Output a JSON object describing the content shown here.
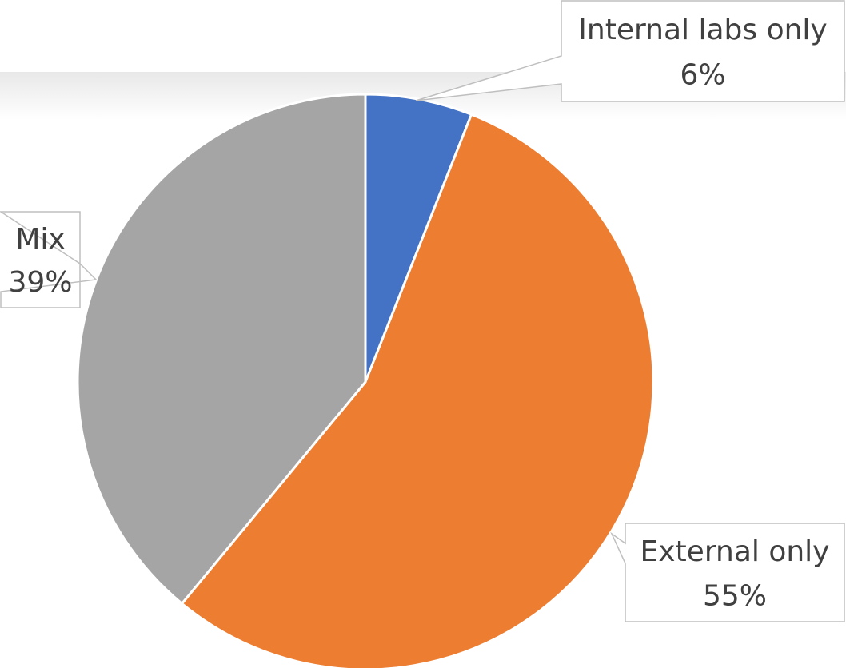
{
  "chart_data": {
    "type": "pie",
    "categories": [
      "Internal labs only",
      "External only",
      "Mix"
    ],
    "values": [
      6,
      55,
      39
    ],
    "value_labels": [
      "6%",
      "55%",
      "39%"
    ],
    "colors": [
      "#4472c4",
      "#ed7d31",
      "#a5a5a5"
    ]
  }
}
